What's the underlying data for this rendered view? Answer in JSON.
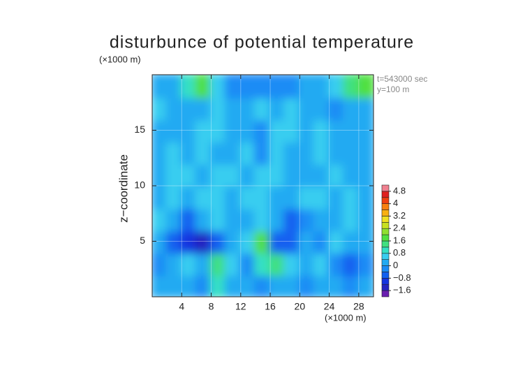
{
  "chart_data": {
    "type": "contour",
    "title": "disturbunce of potential temperature",
    "y_unit": "(×1000 m)",
    "x_unit": "(×1000 m)",
    "ylabel": "z−coordinate",
    "annotations": [
      "t=543000 sec",
      "y=100 m"
    ],
    "xlim": [
      0,
      30
    ],
    "ylim": [
      0,
      20
    ],
    "xticks": [
      4,
      8,
      12,
      16,
      20,
      24,
      28
    ],
    "yticks": [
      5,
      10,
      15
    ],
    "x": [
      1,
      3,
      5,
      7,
      9,
      11,
      13,
      15,
      17,
      19,
      21,
      23,
      25,
      27,
      29
    ],
    "y": [
      1,
      3,
      5,
      7,
      9,
      11,
      13,
      15,
      17,
      19
    ],
    "z": [
      [
        0,
        0.2,
        0,
        -0.2,
        0.8,
        0.2,
        0,
        -0.2,
        0,
        0.2,
        -0.4,
        0,
        0.2,
        -0.4,
        0
      ],
      [
        -0.2,
        0.2,
        0.4,
        0,
        1.2,
        0.4,
        -0.4,
        0.8,
        1.2,
        0.4,
        0,
        0.4,
        -0.2,
        -0.6,
        -0.2
      ],
      [
        0,
        -0.6,
        -1.2,
        -1.6,
        -0.6,
        0.2,
        0.4,
        1.6,
        -0.8,
        -0.6,
        0,
        -0.2,
        0.4,
        0,
        0
      ],
      [
        0.4,
        0.2,
        -0.8,
        0,
        0.4,
        0,
        0.2,
        0.4,
        0.2,
        -0.8,
        -0.4,
        0.2,
        0,
        0.4,
        0
      ],
      [
        0,
        0.4,
        0.2,
        0.4,
        0.6,
        0.2,
        0.4,
        0.6,
        0,
        0.2,
        0.4,
        0.4,
        0.2,
        0.4,
        0
      ],
      [
        0.2,
        0.4,
        0.6,
        0.2,
        0.4,
        0.4,
        0.2,
        0.6,
        0.4,
        0,
        0.2,
        0.2,
        0.4,
        0.2,
        0.2
      ],
      [
        0,
        0.4,
        0.2,
        0.6,
        0.2,
        0,
        0.4,
        -0.4,
        0.6,
        0.2,
        0,
        0.4,
        0.2,
        0,
        0.2
      ],
      [
        0.2,
        0.2,
        0,
        0.4,
        0.6,
        0.2,
        0.2,
        -0.2,
        0.4,
        0.6,
        0.2,
        0.4,
        0,
        0.2,
        0
      ],
      [
        0.4,
        0,
        0.2,
        0,
        0.4,
        0,
        0.2,
        0.4,
        0,
        0.6,
        0.2,
        0,
        -0.2,
        0,
        0.2
      ],
      [
        0,
        0,
        0.8,
        1.6,
        0.4,
        -0.2,
        -0.4,
        -0.4,
        -0.4,
        -0.2,
        0,
        0.2,
        0.6,
        1.2,
        1.6
      ]
    ],
    "colorbar": {
      "levels": [
        -2,
        -1.6,
        -1.2,
        -0.8,
        -0.4,
        0,
        0.4,
        0.8,
        1.2,
        1.6,
        2,
        2.4,
        2.8,
        3.2,
        3.6,
        4,
        4.4,
        4.8,
        5.2
      ],
      "colors": [
        "#6a1fb0",
        "#2424c0",
        "#1434e0",
        "#1260f0",
        "#1a8cf5",
        "#22aaf2",
        "#38cdf0",
        "#34e0c4",
        "#40e080",
        "#50e040",
        "#90e030",
        "#c8e020",
        "#f0e020",
        "#f8b010",
        "#f88010",
        "#f04010",
        "#e02020",
        "#f08090"
      ],
      "ticks": [
        {
          "value": -1.6,
          "label": "−1.6"
        },
        {
          "value": -0.8,
          "label": "−0.8"
        },
        0,
        0.8,
        1.6,
        2.4,
        3.2,
        4,
        4.8
      ]
    }
  }
}
